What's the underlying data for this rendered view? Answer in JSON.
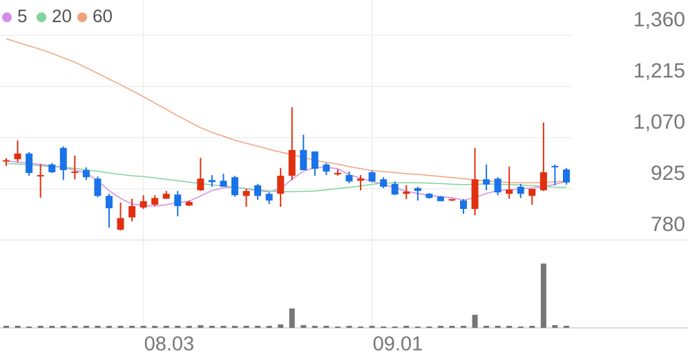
{
  "chart_data": {
    "type": "candlestick",
    "categories": [
      null,
      null,
      null,
      null,
      null,
      null,
      null,
      null,
      null,
      null,
      null,
      null,
      "08.03",
      null,
      null,
      null,
      null,
      null,
      null,
      null,
      null,
      null,
      null,
      null,
      null,
      null,
      null,
      null,
      null,
      null,
      null,
      null,
      "09.01",
      null,
      null,
      null,
      null,
      null,
      null,
      null,
      null,
      null,
      null,
      null,
      null,
      null,
      null,
      null,
      null,
      null
    ],
    "open": [
      1003,
      1009,
      1025,
      960,
      994,
      1041,
      972,
      978,
      954,
      905,
      809,
      844,
      872,
      880,
      897,
      909,
      878,
      921,
      950,
      948,
      958,
      905,
      935,
      911,
      911,
      962,
      1035,
      1031,
      994,
      966,
      964,
      948,
      972,
      952,
      939,
      911,
      927,
      911,
      903,
      892,
      892,
      868,
      952,
      954,
      911,
      931,
      905,
      921,
      990,
      980
    ],
    "high": [
      1012,
      1062,
      1029,
      995,
      998,
      1045,
      1019,
      986,
      960,
      911,
      886,
      897,
      907,
      907,
      919,
      919,
      892,
      1013,
      964,
      968,
      962,
      925,
      939,
      915,
      984,
      1156,
      1078,
      1031,
      998,
      980,
      974,
      964,
      976,
      958,
      946,
      935,
      931,
      913,
      905,
      897,
      896,
      1041,
      994,
      958,
      988,
      939,
      925,
      1113,
      994,
      984
    ],
    "low": [
      990,
      1001,
      962,
      900,
      970,
      950,
      952,
      950,
      901,
      815,
      807,
      833,
      868,
      876,
      897,
      847,
      876,
      919,
      931,
      931,
      903,
      874,
      894,
      882,
      874,
      950,
      978,
      962,
      964,
      962,
      941,
      921,
      944,
      927,
      907,
      896,
      892,
      897,
      890,
      890,
      854,
      850,
      921,
      907,
      897,
      899,
      880,
      919,
      935,
      937
    ],
    "close": [
      1006,
      1025,
      970,
      964,
      972,
      978,
      974,
      958,
      905,
      870,
      842,
      876,
      890,
      899,
      911,
      876,
      888,
      954,
      944,
      931,
      907,
      919,
      905,
      892,
      962,
      1035,
      978,
      982,
      974,
      970,
      946,
      954,
      946,
      931,
      909,
      917,
      919,
      899,
      890,
      896,
      868,
      952,
      937,
      915,
      923,
      911,
      925,
      972,
      986,
      943
    ],
    "up_color": "#e0300f",
    "down_color": "#1a73e8",
    "ma": [
      {
        "name": "5",
        "color": "#d48be8",
        "values": [
          1005,
          1000,
          998,
          994,
          990,
          986,
          978,
          970,
          948,
          920,
          898,
          882,
          878,
          876,
          880,
          886,
          890,
          905,
          920,
          928,
          930,
          925,
          920,
          917,
          925,
          952,
          975,
          985,
          986,
          982,
          965,
          955,
          946,
          938,
          928,
          918,
          912,
          906,
          903,
          900,
          893,
          900,
          912,
          920,
          922,
          925,
          928,
          931,
          938,
          946
        ]
      },
      {
        "name": "20",
        "color": "#80d49c",
        "values": [
          997,
          995,
          993,
          990,
          988,
          986,
          983,
          979,
          975,
          970,
          966,
          962,
          960,
          956,
          952,
          948,
          944,
          940,
          936,
          933,
          930,
          926,
          922,
          919,
          917,
          917,
          918,
          919,
          922,
          926,
          929,
          933,
          938,
          941,
          942,
          942,
          942,
          941,
          940,
          938,
          937,
          938,
          939,
          938,
          937,
          936,
          934,
          932,
          930,
          929
        ]
      },
      {
        "name": "60",
        "color": "#f0a27c",
        "values": [
          1350,
          1340,
          1330,
          1320,
          1309,
          1296,
          1284,
          1268,
          1252,
          1236,
          1220,
          1203,
          1186,
          1168,
          1150,
          1132,
          1115,
          1098,
          1085,
          1074,
          1063,
          1054,
          1046,
          1037,
          1029,
          1022,
          1014,
          1006,
          1000,
          995,
          988,
          982,
          977,
          974,
          971,
          968,
          966,
          963,
          960,
          957,
          954,
          950,
          947,
          945,
          943,
          942,
          942,
          943,
          945,
          946
        ]
      }
    ],
    "volume": [
      3,
      3,
      2,
      3,
      3,
      3,
      3,
      3,
      3,
      3,
      3,
      3,
      3,
      3,
      3,
      3,
      3,
      4,
      3,
      3,
      3,
      3,
      3,
      3,
      5,
      28,
      4,
      3,
      3,
      2,
      3,
      2,
      3,
      2,
      2,
      3,
      2,
      2,
      3,
      3,
      3,
      19,
      3,
      3,
      3,
      2,
      3,
      93,
      4,
      3
    ],
    "volume_color": "#777777",
    "volume_lim": [
      0,
      100
    ],
    "ylim": [
      780,
      1460
    ],
    "yticks": [
      780,
      925,
      {
        "value": 1070,
        "label": "1,070"
      },
      {
        "value": 1215,
        "label": "1,215"
      },
      {
        "value": 1360,
        "label": "1,360"
      }
    ],
    "grid": true
  }
}
